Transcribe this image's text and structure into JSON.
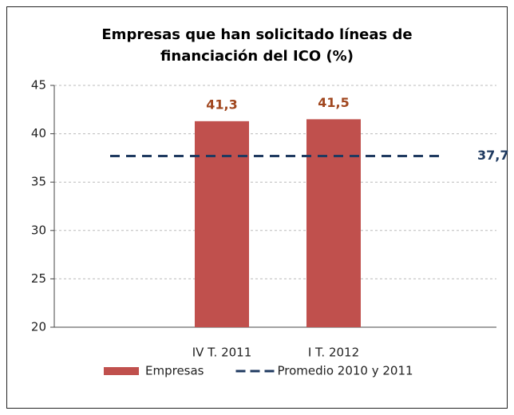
{
  "chart_data": {
    "type": "bar",
    "title": "Empresas que han solicitado líneas de financiación del ICO (%)",
    "categories": [
      null,
      "IV T. 2011",
      "I T. 2012",
      null
    ],
    "series": [
      {
        "name": "Empresas",
        "type": "bar",
        "color": "#c0504d",
        "values": [
          null,
          41.3,
          41.5,
          null
        ],
        "value_labels": [
          null,
          "41,3",
          "41,5",
          null
        ],
        "label_color": "#a0461e"
      },
      {
        "name": "Promedio 2010 y 2011",
        "type": "line",
        "color": "#1f3a60",
        "dashed": true,
        "values": [
          37.7,
          37.7,
          37.7,
          37.7
        ],
        "value_labels": [
          null,
          null,
          null,
          "37,7"
        ],
        "label_color": "#1f3a60"
      }
    ],
    "ylim": [
      20,
      45
    ],
    "yticks": [
      20,
      25,
      30,
      35,
      40,
      45
    ],
    "grid": true,
    "legend": "bottom"
  }
}
